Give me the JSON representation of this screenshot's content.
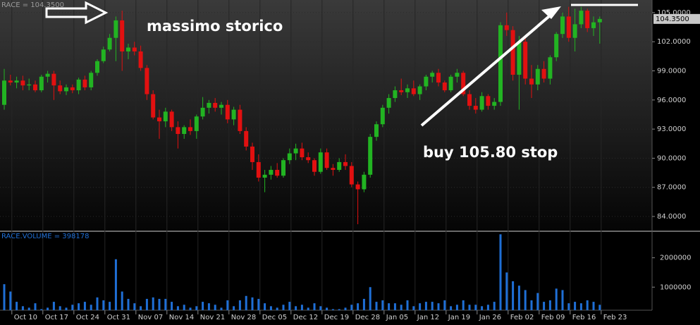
{
  "chart_data": {
    "type": "candlestick",
    "title": "RACE = 104.3500",
    "categories": [
      null,
      "Oct 10",
      null,
      null,
      null,
      null,
      "Oct 17",
      null,
      null,
      null,
      null,
      "Oct 24",
      null,
      null,
      null,
      null,
      "Oct 31",
      null,
      null,
      null,
      null,
      "Nov 07",
      null,
      null,
      null,
      null,
      "Nov 14",
      null,
      null,
      null,
      null,
      "Nov 21",
      null,
      null,
      null,
      null,
      "Nov 28",
      null,
      null,
      null,
      null,
      "Dec 05",
      null,
      null,
      null,
      null,
      "Dec 12",
      null,
      null,
      null,
      null,
      "Dec 19",
      null,
      null,
      null,
      null,
      "Dec 28",
      null,
      null,
      null,
      null,
      "Jan 05",
      null,
      null,
      null,
      null,
      "Jan 12",
      null,
      null,
      null,
      null,
      "Jan 19",
      null,
      null,
      null,
      null,
      "Jan 26",
      null,
      null,
      null,
      null,
      "Feb 02",
      null,
      null,
      null,
      null,
      "Feb 09",
      null,
      null,
      null,
      null,
      "Feb 16",
      null,
      null,
      null,
      null,
      "Feb 23"
    ],
    "open": [
      95.5,
      98.0,
      97.8,
      98.0,
      97.5,
      97.6,
      97.0,
      98.4,
      98.7,
      97.5,
      96.9,
      97.3,
      97.0,
      98.1,
      97.3,
      98.8,
      100.0,
      101.2,
      102.4,
      104.2,
      101.0,
      101.4,
      101.0,
      99.3,
      96.6,
      94.2,
      93.8,
      94.8,
      93.2,
      92.5,
      93.2,
      92.8,
      94.3,
      95.2,
      95.7,
      95.2,
      95.5,
      94.0,
      95.0,
      92.8,
      91.2,
      89.6,
      88.0,
      88.3,
      88.8,
      88.2,
      89.8,
      90.5,
      91.0,
      90.1,
      89.8,
      88.6,
      90.6,
      89.0,
      88.8,
      89.6,
      89.2,
      87.3,
      86.8,
      88.3,
      92.2,
      93.5,
      95.2,
      96.2,
      97.0,
      96.8,
      97.2,
      96.6,
      97.4,
      98.4,
      98.8,
      97.8,
      97.0,
      98.4,
      98.8,
      96.6,
      95.4,
      95.0,
      96.4,
      95.4,
      95.8,
      103.7,
      103.2,
      98.6,
      102.0,
      98.2,
      97.6,
      99.2,
      98.2,
      100.4,
      102.8,
      104.6,
      102.4,
      103.8,
      105.2,
      103.4,
      104.0
    ],
    "high": [
      99.2,
      98.6,
      98.4,
      98.5,
      98.2,
      98.0,
      98.6,
      99.0,
      99.0,
      98.0,
      97.6,
      97.6,
      98.3,
      98.5,
      99.0,
      100.2,
      101.5,
      102.8,
      104.6,
      105.2,
      101.8,
      102.0,
      101.6,
      99.6,
      97.0,
      95.0,
      95.2,
      95.0,
      93.8,
      93.4,
      94.0,
      94.5,
      96.3,
      96.0,
      96.2,
      95.8,
      96.0,
      95.3,
      95.5,
      93.2,
      91.6,
      90.4,
      88.8,
      89.2,
      89.5,
      90.0,
      91.0,
      91.5,
      91.6,
      90.6,
      90.0,
      91.0,
      91.0,
      89.4,
      90.0,
      90.4,
      89.6,
      87.6,
      88.6,
      92.5,
      93.8,
      95.5,
      96.6,
      97.4,
      98.2,
      97.6,
      98.0,
      97.6,
      98.6,
      99.0,
      99.2,
      98.0,
      98.6,
      99.2,
      99.0,
      97.0,
      96.2,
      96.8,
      96.6,
      96.2,
      104.0,
      105.0,
      103.6,
      102.6,
      102.6,
      99.6,
      99.6,
      100.0,
      100.6,
      103.0,
      105.0,
      105.6,
      105.4,
      105.6,
      105.4,
      104.6,
      104.6
    ],
    "low": [
      95.0,
      97.5,
      97.2,
      97.0,
      97.0,
      96.8,
      96.8,
      97.8,
      96.0,
      96.6,
      96.5,
      96.7,
      96.6,
      97.0,
      97.0,
      98.5,
      99.8,
      101.0,
      100.0,
      99.0,
      100.2,
      100.6,
      99.0,
      96.0,
      94.0,
      92.0,
      93.2,
      92.8,
      91.0,
      92.0,
      92.4,
      92.0,
      94.0,
      94.6,
      94.8,
      94.5,
      93.6,
      93.4,
      92.5,
      90.8,
      88.8,
      87.6,
      86.5,
      87.8,
      88.0,
      88.0,
      89.4,
      89.8,
      89.8,
      89.5,
      88.2,
      88.4,
      88.8,
      88.2,
      88.6,
      88.8,
      87.0,
      83.2,
      86.5,
      88.0,
      91.8,
      93.2,
      94.6,
      95.8,
      96.5,
      96.2,
      96.4,
      96.0,
      97.0,
      97.8,
      97.4,
      96.8,
      96.8,
      97.8,
      96.4,
      95.0,
      94.6,
      94.8,
      95.0,
      95.0,
      95.4,
      102.6,
      98.0,
      95.0,
      97.6,
      96.2,
      97.0,
      97.8,
      97.6,
      100.0,
      102.4,
      102.0,
      101.0,
      103.4,
      103.0,
      102.6,
      101.8
    ],
    "close": [
      98.0,
      97.8,
      98.0,
      97.5,
      97.6,
      97.0,
      98.4,
      98.7,
      97.5,
      96.9,
      97.3,
      97.0,
      98.1,
      97.3,
      98.8,
      100.0,
      101.2,
      102.4,
      104.2,
      101.0,
      101.4,
      101.0,
      99.3,
      96.6,
      94.2,
      93.8,
      94.8,
      93.2,
      92.5,
      93.2,
      92.8,
      94.3,
      95.2,
      95.7,
      95.2,
      95.5,
      94.0,
      95.0,
      92.8,
      91.2,
      89.6,
      88.0,
      88.3,
      88.8,
      88.2,
      89.8,
      90.5,
      91.0,
      90.1,
      89.8,
      88.6,
      90.6,
      89.0,
      88.8,
      89.6,
      89.2,
      87.3,
      86.8,
      88.3,
      92.2,
      93.5,
      95.2,
      96.2,
      97.0,
      96.8,
      97.2,
      96.6,
      97.4,
      98.4,
      98.8,
      97.8,
      97.0,
      98.4,
      98.8,
      96.6,
      95.4,
      95.0,
      96.4,
      95.4,
      95.8,
      103.7,
      103.2,
      98.6,
      102.0,
      98.2,
      97.6,
      99.2,
      98.2,
      100.4,
      102.8,
      104.6,
      102.4,
      103.8,
      105.2,
      103.4,
      104.0,
      104.35
    ],
    "up_color": "#22b422",
    "down_color": "#e21010",
    "ylim": [
      82.55,
      106.3
    ],
    "yticks": [
      {
        "value": 84,
        "label": "84.0000"
      },
      {
        "value": 87,
        "label": "87.0000"
      },
      {
        "value": 90,
        "label": "90.0000"
      },
      {
        "value": 93,
        "label": "93.0000"
      },
      {
        "value": 96,
        "label": "96.0000"
      },
      {
        "value": 99,
        "label": "99.0000"
      },
      {
        "value": 102,
        "label": "102.0000"
      },
      {
        "value": 105,
        "label": "105.0000"
      }
    ],
    "last_label": "104.3500",
    "annotations": [
      "massimo storico",
      "buy 105.80 stop"
    ],
    "volume": {
      "title": "RACE.VOLUME = 398178",
      "color": "#1f6fd6",
      "values": [
        1100000,
        850000,
        500000,
        350000,
        300000,
        450000,
        250000,
        300000,
        500000,
        350000,
        300000,
        400000,
        450000,
        500000,
        400000,
        650000,
        550000,
        500000,
        1950000,
        850000,
        600000,
        450000,
        350000,
        600000,
        650000,
        600000,
        600000,
        500000,
        350000,
        400000,
        300000,
        350000,
        500000,
        450000,
        400000,
        300000,
        550000,
        350000,
        550000,
        700000,
        650000,
        600000,
        450000,
        350000,
        300000,
        400000,
        500000,
        350000,
        400000,
        300000,
        450000,
        350000,
        300000,
        250000,
        250000,
        300000,
        400000,
        450000,
        600000,
        1000000,
        500000,
        550000,
        450000,
        450000,
        400000,
        550000,
        350000,
        450000,
        500000,
        500000,
        450000,
        550000,
        350000,
        400000,
        550000,
        400000,
        400000,
        350000,
        400000,
        500000,
        2800000,
        1500000,
        1200000,
        1050000,
        900000,
        550000,
        800000,
        500000,
        550000,
        950000,
        900000,
        450000,
        500000,
        450000,
        550000,
        500000,
        398178
      ],
      "ylim": [
        214000,
        2880000
      ],
      "yticks": [
        1000000,
        2000000
      ]
    }
  }
}
